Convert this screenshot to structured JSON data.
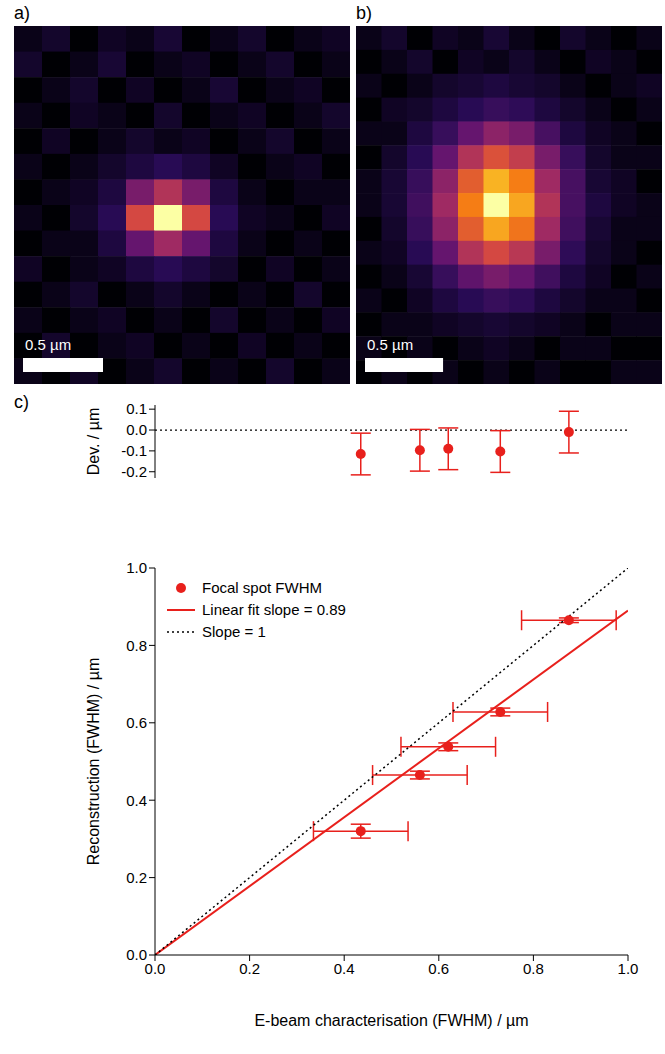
{
  "chart_data": [
    {
      "type": "heatmap",
      "panel_label": "a)",
      "cell_range": [
        0,
        1
      ],
      "extent_um": [
        2.1,
        2.24
      ],
      "scale_bar": {
        "label": "0.5 µm",
        "length": 0.5
      },
      "cells": [
        [
          0.05,
          0.1,
          0.0,
          0.08,
          0.05,
          0.12,
          0.0,
          0.05,
          0.1,
          0.0,
          0.05,
          0.08
        ],
        [
          0.1,
          0.0,
          0.05,
          0.12,
          0.0,
          0.05,
          0.08,
          0.0,
          0.05,
          0.1,
          0.0,
          0.05
        ],
        [
          0.0,
          0.05,
          0.1,
          0.0,
          0.08,
          0.0,
          0.05,
          0.12,
          0.0,
          0.05,
          0.08,
          0.0
        ],
        [
          0.05,
          0.0,
          0.08,
          0.05,
          0.0,
          0.1,
          0.0,
          0.05,
          0.08,
          0.0,
          0.05,
          0.1
        ],
        [
          0.0,
          0.08,
          0.0,
          0.05,
          0.1,
          0.05,
          0.08,
          0.0,
          0.05,
          0.1,
          0.0,
          0.05
        ],
        [
          0.05,
          0.0,
          0.05,
          0.1,
          0.15,
          0.2,
          0.15,
          0.08,
          0.0,
          0.05,
          0.08,
          0.0
        ],
        [
          0.0,
          0.05,
          0.08,
          0.15,
          0.45,
          0.6,
          0.45,
          0.15,
          0.05,
          0.0,
          0.05,
          0.05
        ],
        [
          0.05,
          0.0,
          0.1,
          0.2,
          0.7,
          1.0,
          0.7,
          0.2,
          0.08,
          0.05,
          0.0,
          0.08
        ],
        [
          0.0,
          0.05,
          0.05,
          0.15,
          0.4,
          0.55,
          0.4,
          0.15,
          0.05,
          0.0,
          0.05,
          0.0
        ],
        [
          0.08,
          0.0,
          0.05,
          0.08,
          0.15,
          0.2,
          0.15,
          0.1,
          0.0,
          0.08,
          0.0,
          0.05
        ],
        [
          0.0,
          0.05,
          0.1,
          0.0,
          0.05,
          0.1,
          0.05,
          0.0,
          0.05,
          0.0,
          0.1,
          0.0
        ],
        [
          0.05,
          0.0,
          0.05,
          0.08,
          0.0,
          0.05,
          0.0,
          0.1,
          0.0,
          0.05,
          0.0,
          0.08
        ],
        [
          0.0,
          0.1,
          0.0,
          0.05,
          0.08,
          0.0,
          0.05,
          0.0,
          0.08,
          0.0,
          0.05,
          0.0
        ],
        [
          0.05,
          0.0,
          0.08,
          0.0,
          0.05,
          0.1,
          0.0,
          0.05,
          0.0,
          0.1,
          0.0,
          0.05
        ]
      ]
    },
    {
      "type": "heatmap",
      "panel_label": "b)",
      "cell_range": [
        0,
        1
      ],
      "extent_um": [
        1.96,
        2.29
      ],
      "scale_bar": {
        "label": "0.5 µm",
        "length": 0.5
      },
      "cells": [
        [
          0.05,
          0.1,
          0.0,
          0.08,
          0.05,
          0.12,
          0.05,
          0.0,
          0.1,
          0.05,
          0.0,
          0.05
        ],
        [
          0.0,
          0.05,
          0.1,
          0.0,
          0.08,
          0.05,
          0.1,
          0.05,
          0.0,
          0.08,
          0.05,
          0.0
        ],
        [
          0.05,
          0.0,
          0.05,
          0.1,
          0.12,
          0.15,
          0.12,
          0.1,
          0.05,
          0.0,
          0.05,
          0.08
        ],
        [
          0.0,
          0.08,
          0.1,
          0.15,
          0.2,
          0.25,
          0.22,
          0.15,
          0.1,
          0.05,
          0.0,
          0.05
        ],
        [
          0.05,
          0.05,
          0.15,
          0.25,
          0.4,
          0.5,
          0.45,
          0.3,
          0.15,
          0.08,
          0.05,
          0.0
        ],
        [
          0.0,
          0.1,
          0.2,
          0.4,
          0.6,
          0.72,
          0.65,
          0.45,
          0.25,
          0.1,
          0.05,
          0.05
        ],
        [
          0.05,
          0.12,
          0.25,
          0.5,
          0.75,
          0.9,
          0.82,
          0.55,
          0.3,
          0.12,
          0.08,
          0.0
        ],
        [
          0.05,
          0.12,
          0.28,
          0.55,
          0.82,
          1.0,
          0.88,
          0.6,
          0.3,
          0.15,
          0.08,
          0.05
        ],
        [
          0.0,
          0.1,
          0.25,
          0.5,
          0.75,
          0.88,
          0.8,
          0.55,
          0.28,
          0.12,
          0.05,
          0.05
        ],
        [
          0.05,
          0.08,
          0.2,
          0.4,
          0.6,
          0.7,
          0.62,
          0.45,
          0.22,
          0.1,
          0.05,
          0.0
        ],
        [
          0.0,
          0.05,
          0.12,
          0.25,
          0.38,
          0.45,
          0.4,
          0.28,
          0.15,
          0.08,
          0.0,
          0.05
        ],
        [
          0.05,
          0.0,
          0.08,
          0.15,
          0.2,
          0.25,
          0.22,
          0.15,
          0.1,
          0.05,
          0.05,
          0.0
        ],
        [
          0.0,
          0.05,
          0.05,
          0.08,
          0.1,
          0.12,
          0.1,
          0.08,
          0.05,
          0.0,
          0.05,
          0.05
        ],
        [
          0.05,
          0.0,
          0.05,
          0.0,
          0.05,
          0.08,
          0.05,
          0.0,
          0.05,
          0.05,
          0.0,
          0.0
        ],
        [
          0.0,
          0.05,
          0.0,
          0.05,
          0.0,
          0.05,
          0.0,
          0.05,
          0.0,
          0.0,
          0.05,
          0.05
        ]
      ]
    },
    {
      "type": "scatter",
      "panel_label": "c)",
      "ylabel": "Dev. / µm",
      "tick_labels": "y",
      "xlim": [
        0,
        1
      ],
      "ylim": [
        -0.23,
        0.12
      ],
      "yticks": [
        -0.2,
        -0.1,
        {
          "value": 0,
          "label": "0.0"
        },
        0.1
      ],
      "reference_line": 0,
      "color": "#e8201c",
      "marker": "circle",
      "x": [
        0.435,
        0.56,
        0.62,
        0.73,
        0.875
      ],
      "values": [
        -0.115,
        -0.097,
        -0.09,
        -0.103,
        -0.01
      ],
      "y_error": [
        0.1,
        0.1,
        0.1,
        0.1,
        0.1
      ]
    },
    {
      "type": "scatter",
      "xlabel": "E-beam characterisation (FWHM) / µm",
      "ylabel": "Reconstruction (FWHM) / µm",
      "xlim": [
        0,
        1
      ],
      "ylim": [
        0,
        1
      ],
      "xticks": [
        {
          "value": 0,
          "label": "0.0"
        },
        0.2,
        0.4,
        0.6,
        0.8,
        {
          "value": 1,
          "label": "1.0"
        }
      ],
      "yticks": [
        {
          "value": 0,
          "label": "0.0"
        },
        0.2,
        0.4,
        0.6,
        0.8,
        {
          "value": 1,
          "label": "1.0"
        }
      ],
      "legend": "top-left",
      "series": [
        {
          "name": "Focal spot FWHM",
          "type": "scatter",
          "color": "#e8201c",
          "marker": "circle",
          "x": [
            0.435,
            0.56,
            0.62,
            0.73,
            0.875
          ],
          "values": [
            0.32,
            0.465,
            0.538,
            0.628,
            0.865
          ],
          "x_error": [
            0.1,
            0.1,
            0.1,
            0.1,
            0.1
          ],
          "y_error": [
            0.018,
            0.01,
            0.01,
            0.01,
            0.006
          ]
        },
        {
          "name": "Linear fit slope = 0.89",
          "type": "line",
          "color": "#e8201c",
          "line_style": "solid",
          "x": [
            0,
            1
          ],
          "values": [
            0,
            0.89
          ]
        },
        {
          "name": "Slope = 1",
          "type": "line",
          "color": "#000000",
          "line_style": "dotted",
          "x": [
            0,
            1
          ],
          "values": [
            0,
            1
          ]
        }
      ]
    }
  ]
}
